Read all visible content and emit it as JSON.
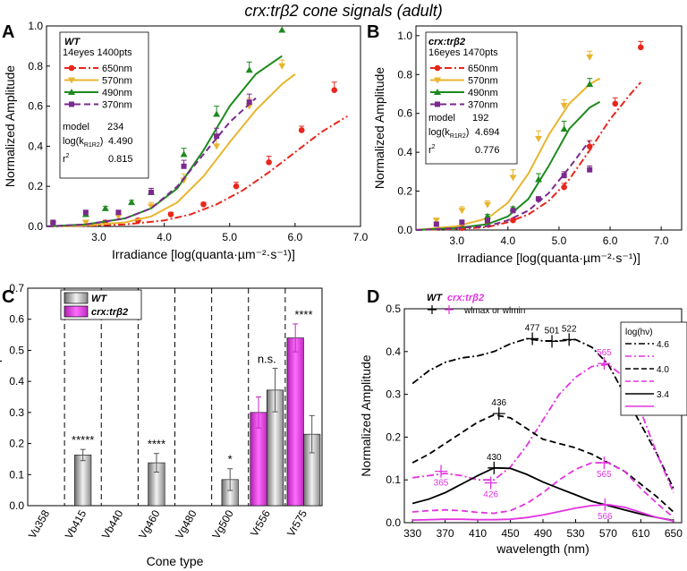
{
  "figure_title": "crx:trβ2 cone signals (adult)",
  "panels": {
    "A": {
      "letter": "A",
      "legend_title": "WT",
      "legend_subtitle": "14eyes 1400pts",
      "legend_entries": [
        "650nm",
        "570nm",
        "490nm",
        "370nm"
      ],
      "stats": {
        "model_label": "model",
        "model_value": "234",
        "logk_label": "log(k",
        "logk_sub": "R1R2",
        "logk_suffix": ")",
        "logk_value": "4.490",
        "r2_label": "r",
        "r2_sup": "2",
        "r2_value": "0.815"
      }
    },
    "B": {
      "letter": "B",
      "legend_title": "crx:trβ2",
      "legend_subtitle": "16eyes 1470pts",
      "legend_entries": [
        "650nm",
        "570nm",
        "490nm",
        "370nm"
      ],
      "stats": {
        "model_label": "model",
        "model_value": "192",
        "logk_label": "log(k",
        "logk_sub": "R1R2",
        "logk_suffix": ")",
        "logk_value": "4.694",
        "r2_label": "r",
        "r2_sup": "2",
        "r2_value": "0.776"
      }
    },
    "C": {
      "letter": "C",
      "legend_entries": [
        "WT",
        "crx:trβ2"
      ]
    },
    "D": {
      "letter": "D",
      "legend_wt": "WT",
      "legend_crx": "crx:trβ2",
      "legend_marker_label": "wlmax or wlmin",
      "loghv_title": "log(hν)",
      "loghv_labels": [
        "4.6",
        "4.0",
        "3.4"
      ]
    }
  },
  "colors": {
    "red": "#e8261c",
    "yellow": "#e8b52e",
    "green": "#1e8a1e",
    "purple": "#7a2a8e",
    "magenta": "#e234e0",
    "gray": "#a7a7a7"
  },
  "chart_data": [
    {
      "panel": "A",
      "type": "scatter",
      "xlabel": "Irradiance [log(quanta·µm⁻²·s⁻¹)]",
      "ylabel": "Normalized Amplitude",
      "xlim": [
        2.2,
        7.0
      ],
      "ylim": [
        0,
        1.0
      ],
      "xticks": [
        "3.0",
        "4.0",
        "5.0",
        "6.0",
        "7.0"
      ],
      "yticks": [
        "0.0",
        "0.2",
        "0.4",
        "0.6",
        "0.8",
        "1.0"
      ],
      "series": [
        {
          "name": "650nm",
          "color": "red",
          "marker": "circle",
          "line": "dashdot",
          "x": [
            2.3,
            3.1,
            3.6,
            4.1,
            4.6,
            5.1,
            5.6,
            6.1,
            6.6
          ],
          "y": [
            0.02,
            0.02,
            0.03,
            0.06,
            0.11,
            0.2,
            0.32,
            0.48,
            0.68
          ],
          "err": [
            0.01,
            0.01,
            0.01,
            0.01,
            0.01,
            0.02,
            0.03,
            0.02,
            0.04
          ],
          "fit_x": [
            2.2,
            2.8,
            3.4,
            4.0,
            4.4,
            4.8,
            5.2,
            5.6,
            6.0,
            6.4,
            6.8
          ],
          "fit_y": [
            0.0,
            0.003,
            0.01,
            0.03,
            0.06,
            0.11,
            0.18,
            0.27,
            0.37,
            0.47,
            0.55
          ]
        },
        {
          "name": "570nm",
          "color": "yellow",
          "marker": "triangle-down",
          "line": "solid",
          "x": [
            2.3,
            2.8,
            3.3,
            3.8,
            4.3,
            4.8,
            5.3,
            5.8
          ],
          "y": [
            0.01,
            0.02,
            0.05,
            0.1,
            0.23,
            0.4,
            0.6,
            0.8
          ],
          "err": [
            0.01,
            0.01,
            0.01,
            0.02,
            0.03,
            0.04,
            0.04,
            0.03
          ],
          "fit_x": [
            2.2,
            2.8,
            3.4,
            3.8,
            4.2,
            4.6,
            5.0,
            5.4,
            5.8,
            6.0
          ],
          "fit_y": [
            0.0,
            0.005,
            0.02,
            0.05,
            0.12,
            0.25,
            0.42,
            0.58,
            0.71,
            0.76
          ]
        },
        {
          "name": "490nm",
          "color": "green",
          "marker": "triangle-up",
          "line": "solid",
          "x": [
            2.8,
            3.1,
            3.5,
            3.8,
            4.3,
            4.8,
            5.3,
            5.8
          ],
          "y": [
            0.06,
            0.09,
            0.12,
            0.17,
            0.36,
            0.56,
            0.78,
            0.98
          ],
          "err": [
            0.01,
            0.01,
            0.01,
            0.02,
            0.03,
            0.04,
            0.04,
            0.0
          ],
          "fit_x": [
            2.2,
            2.8,
            3.4,
            3.8,
            4.2,
            4.6,
            5.0,
            5.4,
            5.8
          ],
          "fit_y": [
            0.0,
            0.01,
            0.04,
            0.09,
            0.19,
            0.38,
            0.6,
            0.76,
            0.85
          ]
        },
        {
          "name": "370nm",
          "color": "purple",
          "marker": "square",
          "line": "dash",
          "x": [
            2.3,
            2.8,
            3.3,
            3.8,
            4.3,
            4.8,
            5.3
          ],
          "y": [
            0.02,
            0.07,
            0.07,
            0.17,
            0.3,
            0.45,
            0.62
          ],
          "err": [
            0.01,
            0.01,
            0.01,
            0.02,
            0.03,
            0.04,
            0.04
          ],
          "fit_x": [
            2.2,
            2.8,
            3.4,
            3.8,
            4.2,
            4.6,
            5.0,
            5.4
          ],
          "fit_y": [
            0.0,
            0.01,
            0.04,
            0.09,
            0.2,
            0.36,
            0.52,
            0.64
          ]
        }
      ]
    },
    {
      "panel": "B",
      "type": "scatter",
      "xlabel": "Irradiance [log(quanta·µm⁻²·s⁻¹)]",
      "ylabel": "Normalized Amplitude",
      "xlim": [
        2.2,
        7.4
      ],
      "ylim": [
        0,
        1.05
      ],
      "xticks": [
        "3.0",
        "4.0",
        "5.0",
        "6.0",
        "7.0"
      ],
      "yticks": [
        "0.0",
        "0.2",
        "0.4",
        "0.6",
        "0.8",
        "1.0"
      ],
      "series": [
        {
          "name": "650nm",
          "color": "red",
          "marker": "circle",
          "line": "dashdot",
          "x": [
            3.1,
            3.6,
            4.1,
            4.6,
            5.1,
            5.6,
            6.1,
            6.6
          ],
          "y": [
            0.01,
            0.04,
            0.05,
            0.16,
            0.22,
            0.43,
            0.65,
            0.94
          ],
          "err": [
            0.01,
            0.01,
            0.01,
            0.01,
            0.02,
            0.03,
            0.03,
            0.03
          ],
          "fit_x": [
            2.2,
            3.0,
            3.6,
            4.0,
            4.4,
            4.8,
            5.2,
            5.6,
            6.0,
            6.4,
            6.6
          ],
          "fit_y": [
            0.0,
            0.005,
            0.015,
            0.04,
            0.08,
            0.15,
            0.26,
            0.41,
            0.57,
            0.7,
            0.76
          ]
        },
        {
          "name": "570nm",
          "color": "yellow",
          "marker": "triangle-down",
          "line": "solid",
          "x": [
            2.6,
            3.1,
            3.6,
            4.1,
            4.6,
            5.1,
            5.6
          ],
          "y": [
            0.05,
            0.1,
            0.13,
            0.27,
            0.47,
            0.64,
            0.89
          ],
          "err": [
            0.01,
            0.02,
            0.02,
            0.04,
            0.04,
            0.03,
            0.03
          ],
          "fit_x": [
            2.2,
            3.0,
            3.6,
            4.0,
            4.4,
            4.8,
            5.2,
            5.6,
            5.8
          ],
          "fit_y": [
            0.0,
            0.02,
            0.06,
            0.14,
            0.29,
            0.49,
            0.65,
            0.75,
            0.78
          ]
        },
        {
          "name": "490nm",
          "color": "green",
          "marker": "triangle-up",
          "line": "solid",
          "x": [
            3.6,
            4.1,
            4.6,
            5.1,
            5.6
          ],
          "y": [
            0.07,
            0.11,
            0.26,
            0.52,
            0.75
          ],
          "err": [
            0.01,
            0.01,
            0.03,
            0.04,
            0.03
          ],
          "fit_x": [
            2.2,
            3.0,
            3.6,
            4.0,
            4.4,
            4.8,
            5.2,
            5.6,
            5.8
          ],
          "fit_y": [
            0.0,
            0.01,
            0.03,
            0.07,
            0.16,
            0.33,
            0.52,
            0.63,
            0.66
          ]
        },
        {
          "name": "370nm",
          "color": "purple",
          "marker": "square",
          "line": "dash",
          "x": [
            2.6,
            3.1,
            3.6,
            4.1,
            4.6,
            5.1,
            5.6
          ],
          "y": [
            0.03,
            0.04,
            0.05,
            0.1,
            0.16,
            0.28,
            0.31
          ],
          "err": [
            0.01,
            0.01,
            0.01,
            0.01,
            0.01,
            0.02,
            0.02
          ],
          "fit_x": [
            2.2,
            3.0,
            3.6,
            4.0,
            4.4,
            4.8,
            5.2,
            5.6
          ],
          "fit_y": [
            0.0,
            0.01,
            0.02,
            0.05,
            0.1,
            0.19,
            0.32,
            0.46
          ]
        }
      ]
    },
    {
      "panel": "C",
      "type": "bar",
      "xlabel": "Cone type",
      "ylabel": "Cone Saturation Amplitudes",
      "ylim": [
        0,
        0.7
      ],
      "yticks": [
        "0.0",
        "0.1",
        "0.2",
        "0.3",
        "0.4",
        "0.5",
        "0.6",
        "0.7"
      ],
      "categories": [
        "Vu358",
        "Vb415",
        "Vb440",
        "Vg460",
        "Vg480",
        "Vg500",
        "Vr556",
        "Vr575"
      ],
      "series": [
        {
          "name": "WT",
          "color": "gray",
          "values": [
            0,
            0.163,
            0,
            0.138,
            0,
            0.084,
            0.372,
            0.23
          ],
          "err": [
            0,
            0.018,
            0,
            0.03,
            0,
            0.035,
            0.07,
            0.06
          ]
        },
        {
          "name": "crx:trβ2",
          "color": "magenta",
          "values": [
            0,
            0,
            0,
            0,
            0,
            0,
            0.3,
            0.54
          ],
          "err": [
            0,
            0,
            0,
            0,
            0,
            0,
            0.05,
            0.045
          ]
        }
      ],
      "annotations": [
        {
          "category": "Vb415",
          "text": "*****"
        },
        {
          "category": "Vg460",
          "text": "****"
        },
        {
          "category": "Vg500",
          "text": "*"
        },
        {
          "category": "Vr556",
          "text": "n.s."
        },
        {
          "category": "Vr575",
          "text": "****"
        }
      ]
    },
    {
      "panel": "D",
      "type": "line",
      "xlabel": "wavelength (nm)",
      "ylabel": "Normalized Amplitude",
      "xlim": [
        320,
        660
      ],
      "ylim": [
        0,
        0.5
      ],
      "xticks": [
        "330",
        "370",
        "410",
        "450",
        "490",
        "530",
        "570",
        "610",
        "650"
      ],
      "yticks": [
        "0.0",
        "0.1",
        "0.2",
        "0.3",
        "0.4",
        "0.5"
      ],
      "series": [
        {
          "name": "4.6",
          "genotype": "WT",
          "color": "black",
          "line": "dashdot",
          "x": [
            330,
            350,
            370,
            390,
            410,
            430,
            450,
            470,
            490,
            510,
            530,
            550,
            570,
            590,
            610,
            630,
            650
          ],
          "y": [
            0.325,
            0.355,
            0.375,
            0.385,
            0.39,
            0.4,
            0.418,
            0.43,
            0.425,
            0.425,
            0.428,
            0.41,
            0.37,
            0.3,
            0.23,
            0.16,
            0.08
          ]
        },
        {
          "name": "4.6",
          "genotype": "crx:trβ2",
          "color": "magenta",
          "line": "dashdot",
          "x": [
            330,
            350,
            370,
            390,
            410,
            430,
            450,
            470,
            490,
            510,
            530,
            550,
            570,
            590,
            610,
            630,
            650
          ],
          "y": [
            0.105,
            0.11,
            0.115,
            0.11,
            0.1,
            0.1,
            0.13,
            0.18,
            0.24,
            0.3,
            0.34,
            0.365,
            0.37,
            0.34,
            0.26,
            0.16,
            0.07
          ]
        },
        {
          "name": "4.0",
          "genotype": "WT",
          "color": "black",
          "line": "dash",
          "x": [
            330,
            350,
            370,
            390,
            410,
            430,
            450,
            470,
            490,
            510,
            530,
            550,
            570,
            590,
            610,
            630,
            650
          ],
          "y": [
            0.14,
            0.16,
            0.185,
            0.21,
            0.235,
            0.252,
            0.245,
            0.22,
            0.195,
            0.185,
            0.175,
            0.16,
            0.14,
            0.12,
            0.09,
            0.06,
            0.025
          ]
        },
        {
          "name": "4.0",
          "genotype": "crx:trβ2",
          "color": "magenta",
          "line": "dash",
          "x": [
            330,
            350,
            370,
            390,
            410,
            430,
            450,
            470,
            490,
            510,
            530,
            550,
            570,
            590,
            610,
            630,
            650
          ],
          "y": [
            0.025,
            0.028,
            0.03,
            0.028,
            0.024,
            0.022,
            0.028,
            0.045,
            0.07,
            0.1,
            0.125,
            0.14,
            0.14,
            0.12,
            0.08,
            0.045,
            0.012
          ]
        },
        {
          "name": "3.4",
          "genotype": "WT",
          "color": "black",
          "line": "solid",
          "x": [
            330,
            350,
            370,
            390,
            410,
            430,
            450,
            470,
            490,
            510,
            530,
            550,
            570,
            590,
            610,
            630,
            650
          ],
          "y": [
            0.045,
            0.055,
            0.07,
            0.09,
            0.11,
            0.128,
            0.127,
            0.113,
            0.095,
            0.08,
            0.065,
            0.05,
            0.04,
            0.03,
            0.02,
            0.012,
            0.005
          ]
        },
        {
          "name": "3.4",
          "genotype": "crx:trβ2",
          "color": "magenta",
          "line": "solid",
          "x": [
            330,
            350,
            370,
            390,
            410,
            430,
            450,
            470,
            490,
            510,
            530,
            550,
            570,
            590,
            610,
            630,
            650
          ],
          "y": [
            0.006,
            0.007,
            0.008,
            0.008,
            0.007,
            0.007,
            0.008,
            0.012,
            0.018,
            0.026,
            0.034,
            0.04,
            0.042,
            0.036,
            0.024,
            0.012,
            0.004
          ]
        }
      ],
      "markers": [
        {
          "genotype": "WT",
          "color": "black",
          "x": 436,
          "y": 0.255,
          "label": "436"
        },
        {
          "genotype": "WT",
          "color": "black",
          "x": 430,
          "y": 0.128,
          "label": "430"
        },
        {
          "genotype": "WT",
          "color": "black",
          "x": 477,
          "y": 0.43,
          "label": "477"
        },
        {
          "genotype": "WT",
          "color": "black",
          "x": 501,
          "y": 0.424,
          "label": "501"
        },
        {
          "genotype": "WT",
          "color": "black",
          "x": 522,
          "y": 0.428,
          "label": "522"
        },
        {
          "genotype": "crx:trβ2",
          "color": "magenta",
          "x": 365,
          "y": 0.12,
          "label": "365"
        },
        {
          "genotype": "crx:trβ2",
          "color": "magenta",
          "x": 426,
          "y": 0.093,
          "label": "426"
        },
        {
          "genotype": "crx:trβ2",
          "color": "magenta",
          "x": 565,
          "y": 0.372,
          "label": "565"
        },
        {
          "genotype": "crx:trβ2",
          "color": "magenta",
          "x": 565,
          "y": 0.14,
          "label": "565"
        },
        {
          "genotype": "crx:trβ2",
          "color": "magenta",
          "x": 566,
          "y": 0.042,
          "label": "566"
        }
      ]
    }
  ]
}
